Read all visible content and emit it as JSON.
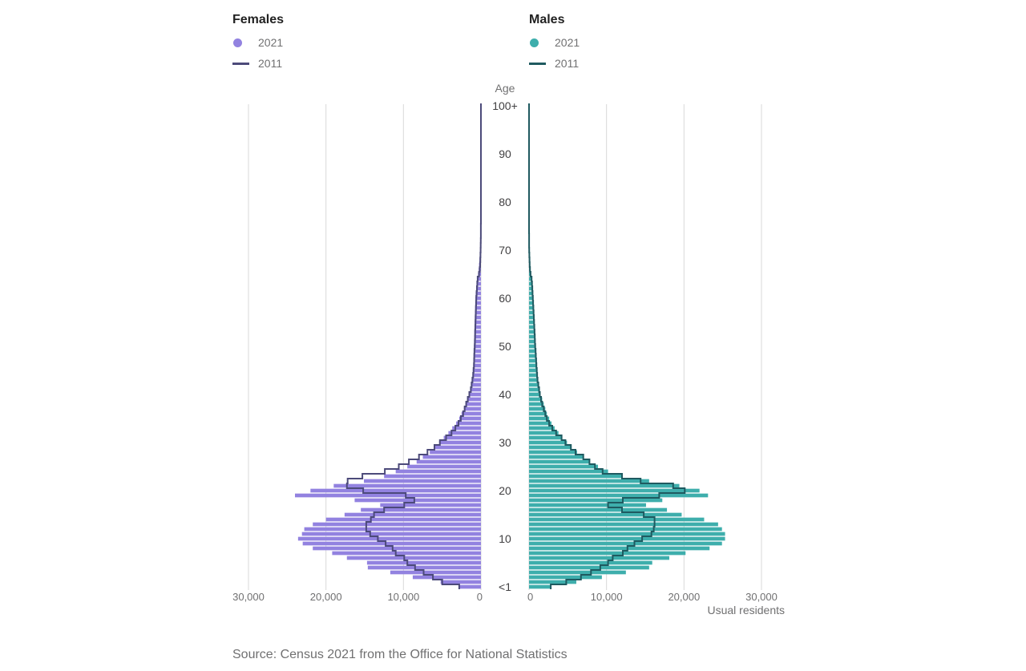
{
  "legend": {
    "females": {
      "title": "Females",
      "series": [
        {
          "label": "2021",
          "color": "#9282e0"
        },
        {
          "label": "2011",
          "color": "#4c4a7a"
        }
      ]
    },
    "males": {
      "title": "Males",
      "series": [
        {
          "label": "2021",
          "color": "#3eaeac"
        },
        {
          "label": "2011",
          "color": "#1f5a60"
        }
      ]
    }
  },
  "source": "Source: Census 2021 from the Office for National Statistics",
  "chart_data": {
    "type": "bar",
    "orientation": "horizontal",
    "subtype": "population-pyramid",
    "center_axis_label": "Age",
    "xlabel": "Usual residents",
    "xlim": [
      0,
      30000
    ],
    "x_ticks": [
      {
        "value": 30000,
        "label": "30,000"
      },
      {
        "value": 20000,
        "label": "20,000"
      },
      {
        "value": 10000,
        "label": "10,000"
      },
      {
        "value": 0,
        "label": "0"
      }
    ],
    "age_tick_labels": [
      {
        "age": 0,
        "label": "<1"
      },
      {
        "age": 10,
        "label": "10"
      },
      {
        "age": 20,
        "label": "20"
      },
      {
        "age": 30,
        "label": "30"
      },
      {
        "age": 40,
        "label": "40"
      },
      {
        "age": 50,
        "label": "50"
      },
      {
        "age": 60,
        "label": "60"
      },
      {
        "age": 70,
        "label": "70"
      },
      {
        "age": 80,
        "label": "80"
      },
      {
        "age": 90,
        "label": "90"
      },
      {
        "age": 100,
        "label": "100+"
      }
    ],
    "ages": [
      0,
      1,
      2,
      3,
      4,
      5,
      6,
      7,
      8,
      9,
      10,
      11,
      12,
      13,
      14,
      15,
      16,
      17,
      18,
      19,
      20,
      21,
      22,
      23,
      24,
      25,
      26,
      27,
      28,
      29,
      30,
      31,
      32,
      33,
      34,
      35,
      36,
      37,
      38,
      39,
      40,
      41,
      42,
      43,
      44,
      45,
      46,
      47,
      48,
      49,
      50,
      51,
      52,
      53,
      54,
      55,
      56,
      57,
      58,
      59,
      60,
      61,
      62,
      63,
      64,
      65,
      66,
      67,
      68,
      69,
      70,
      71,
      72,
      73,
      74,
      75,
      76,
      77,
      78,
      79,
      80,
      81,
      82,
      83,
      84,
      85,
      86,
      87,
      88,
      89,
      90,
      91,
      92,
      93,
      94,
      95,
      96,
      97,
      98,
      99,
      100
    ],
    "series": [
      {
        "name": "2021",
        "side": "females",
        "values": [
          2800,
          5200,
          8800,
          11700,
          14600,
          14700,
          17300,
          19200,
          21700,
          23000,
          23600,
          23100,
          22800,
          21700,
          20000,
          17600,
          15500,
          13000,
          16300,
          24000,
          22000,
          19000,
          15100,
          12500,
          11000,
          9500,
          8300,
          7500,
          6600,
          6000,
          5400,
          4800,
          4200,
          3700,
          3200,
          2800,
          2500,
          2200,
          2000,
          1800,
          1600,
          1400,
          1300,
          1200,
          1100,
          1050,
          1000,
          980,
          960,
          940,
          920,
          900,
          880,
          860,
          840,
          820,
          800,
          780,
          760,
          740,
          720,
          680,
          620,
          560,
          500,
          380,
          300,
          250,
          200,
          150,
          100,
          80,
          60,
          40,
          30,
          20,
          15,
          10,
          8,
          6,
          5,
          4,
          3,
          2,
          2,
          1,
          1,
          1,
          1,
          1,
          1,
          1,
          0,
          0,
          0,
          0,
          0,
          0,
          0,
          0,
          0
        ]
      },
      {
        "name": "2011",
        "side": "females",
        "values": [
          2800,
          5000,
          6200,
          7400,
          8500,
          9500,
          9900,
          11000,
          11400,
          12300,
          13300,
          14300,
          14800,
          14800,
          14200,
          13800,
          12500,
          9900,
          8600,
          9700,
          15200,
          17300,
          17200,
          15300,
          12400,
          10600,
          9300,
          8000,
          6900,
          6000,
          5300,
          4500,
          3800,
          3300,
          2900,
          2600,
          2300,
          2100,
          1900,
          1700,
          1500,
          1300,
          1200,
          1100,
          1000,
          950,
          900,
          880,
          860,
          840,
          800,
          780,
          760,
          740,
          720,
          700,
          680,
          660,
          640,
          620,
          600,
          560,
          520,
          480,
          420,
          250,
          150,
          100,
          80,
          60,
          40,
          30,
          20,
          15,
          10,
          8,
          5,
          3,
          2,
          1,
          1,
          1,
          1,
          0,
          0,
          0,
          0,
          0,
          0,
          0,
          0,
          0,
          0,
          0,
          0,
          0,
          0,
          0,
          0,
          0,
          0
        ]
      },
      {
        "name": "2021",
        "side": "males",
        "values": [
          2800,
          6100,
          9400,
          12500,
          15500,
          15900,
          18100,
          20200,
          23300,
          24900,
          25300,
          25300,
          24900,
          24400,
          22600,
          19700,
          17800,
          15100,
          17200,
          23100,
          22000,
          19400,
          15500,
          12100,
          10200,
          8900,
          7800,
          7000,
          6200,
          5500,
          4900,
          4300,
          3800,
          3300,
          2900,
          2600,
          2300,
          2100,
          1900,
          1700,
          1500,
          1300,
          1200,
          1100,
          1000,
          950,
          900,
          870,
          840,
          810,
          780,
          750,
          720,
          690,
          660,
          630,
          600,
          570,
          540,
          510,
          480,
          440,
          400,
          350,
          300,
          200,
          150,
          120,
          100,
          80,
          50,
          30,
          20,
          15,
          10,
          8,
          5,
          3,
          2,
          1,
          1,
          1,
          1,
          0,
          0,
          0,
          0,
          0,
          0,
          0,
          0,
          0,
          0,
          0,
          0,
          0,
          0,
          0,
          0,
          0,
          0
        ]
      },
      {
        "name": "2011",
        "side": "males",
        "values": [
          2800,
          4800,
          6700,
          8000,
          9200,
          10200,
          10800,
          12100,
          12700,
          13600,
          14600,
          15800,
          16100,
          16200,
          16200,
          14800,
          12000,
          10200,
          12100,
          16800,
          20100,
          18600,
          14400,
          12000,
          9500,
          8500,
          7800,
          7000,
          6000,
          5400,
          4700,
          4200,
          3500,
          3000,
          2600,
          2300,
          2100,
          1900,
          1700,
          1550,
          1400,
          1300,
          1200,
          1100,
          1050,
          1000,
          950,
          920,
          880,
          850,
          800,
          770,
          740,
          710,
          680,
          650,
          620,
          590,
          560,
          530,
          500,
          460,
          420,
          380,
          330,
          200,
          120,
          80,
          60,
          40,
          20,
          15,
          10,
          8,
          5,
          3,
          2,
          1,
          1,
          0,
          0,
          0,
          0,
          0,
          0,
          0,
          0,
          0,
          0,
          0,
          0,
          0,
          0,
          0,
          0,
          0,
          0,
          0,
          0,
          0,
          0
        ]
      }
    ],
    "grid": true
  }
}
